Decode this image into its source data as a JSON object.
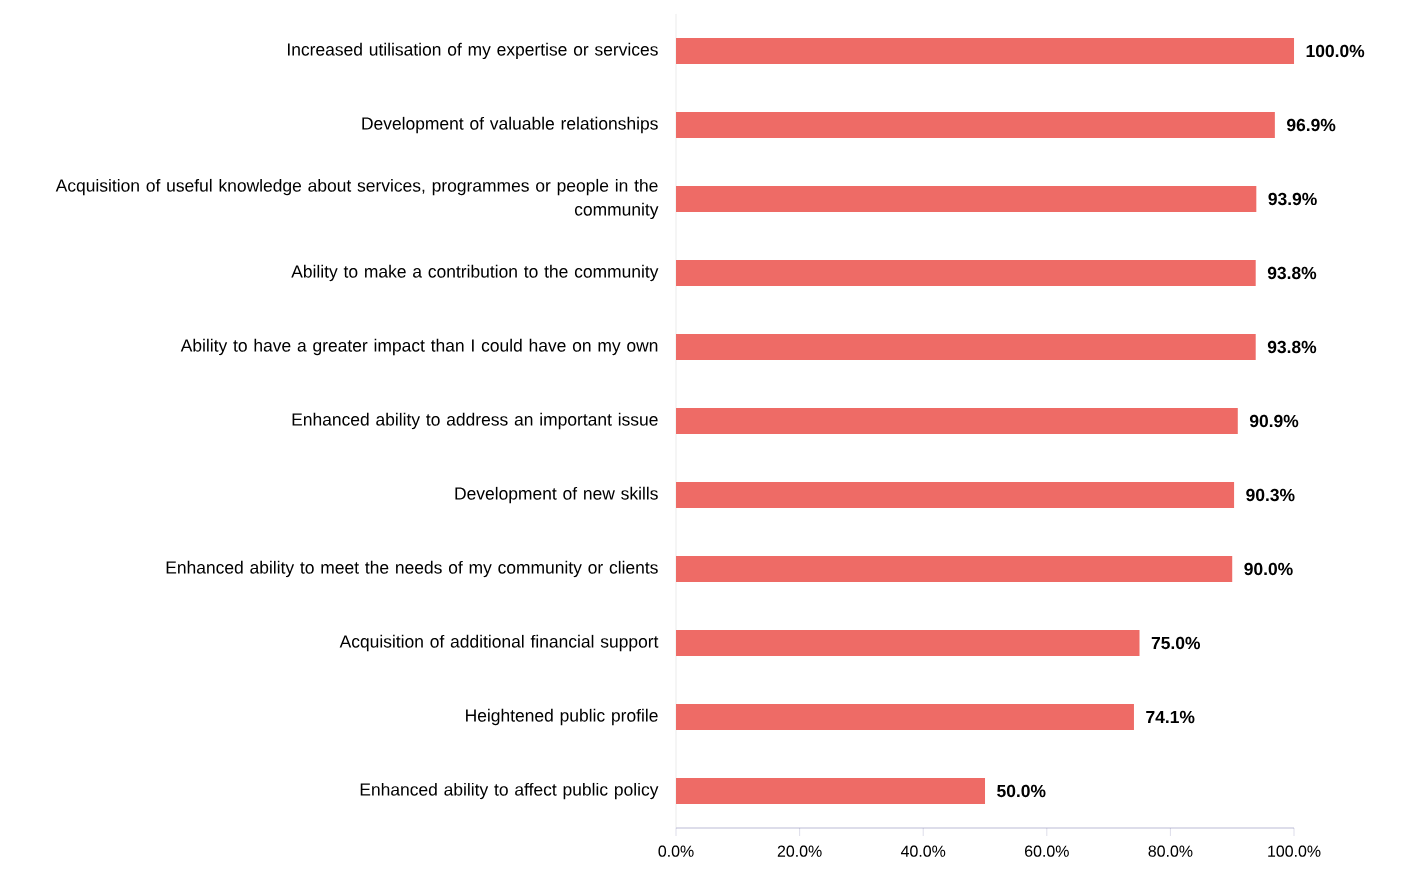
{
  "chart_data": {
    "type": "bar",
    "orientation": "horizontal",
    "categories": [
      "Increased utilisation of my expertise or services",
      "Development of valuable relationships",
      "Acquisition of useful knowledge about services, programmes or people in the community",
      "Ability to make a contribution to the community",
      "Ability to have a greater impact than I could have on my own",
      "Enhanced ability to address an important issue",
      "Development of new skills",
      "Enhanced ability to meet the needs of my community or clients",
      "Acquisition of additional financial support",
      "Heightened public profile",
      "Enhanced ability to affect public policy"
    ],
    "values": [
      100.0,
      96.9,
      93.9,
      93.8,
      93.8,
      90.9,
      90.3,
      90.0,
      75.0,
      74.1,
      50.0
    ],
    "value_labels": [
      "100.0%",
      "96.9%",
      "93.9%",
      "93.8%",
      "93.8%",
      "90.9%",
      "90.3%",
      "90.0%",
      "75.0%",
      "74.1%",
      "50.0%"
    ],
    "color": "#ee6b66",
    "xlim": [
      0,
      100
    ],
    "xticks": [
      {
        "value": 0,
        "label": "0.0%"
      },
      {
        "value": 20,
        "label": "20.0%"
      },
      {
        "value": 40,
        "label": "40.0%"
      },
      {
        "value": 60,
        "label": "60.0%"
      },
      {
        "value": 80,
        "label": "80.0%"
      },
      {
        "value": 100,
        "label": "100.0%"
      }
    ],
    "grid": false,
    "legend": false
  }
}
